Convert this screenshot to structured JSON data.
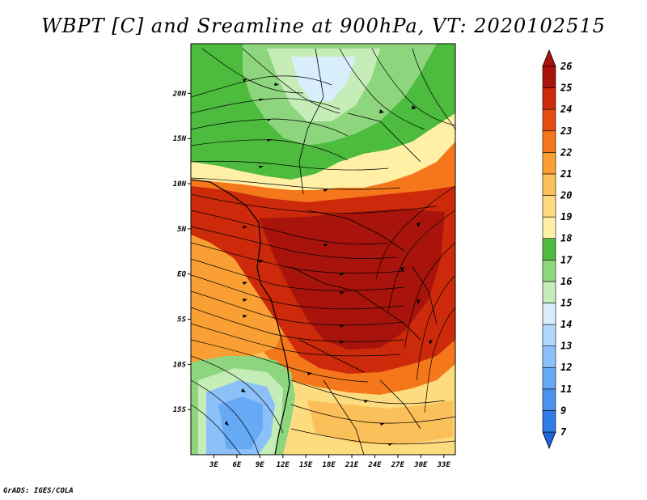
{
  "title": "WBPT [C] and Sreamline at 900hPa, VT: 2020102515",
  "footer": "GrADS: IGES/COLA",
  "map": {
    "lat_labels": [
      "20N",
      "15N",
      "10N",
      "5N",
      "EQ",
      "5S",
      "10S",
      "15S"
    ],
    "lat_values": [
      20,
      15,
      10,
      5,
      0,
      -5,
      -10,
      -15
    ],
    "lon_labels": [
      "3E",
      "6E",
      "9E",
      "12E",
      "15E",
      "18E",
      "21E",
      "24E",
      "27E",
      "30E",
      "33E"
    ],
    "lon_values": [
      3,
      6,
      9,
      12,
      15,
      18,
      21,
      24,
      27,
      30,
      33
    ],
    "lon_range": [
      0,
      34.5
    ],
    "lat_range": [
      -20,
      25.5
    ]
  },
  "colorbar": {
    "labels": [
      "7",
      "9",
      "11",
      "12",
      "13",
      "14",
      "15",
      "16",
      "17",
      "18",
      "19",
      "20",
      "21",
      "22",
      "23",
      "24",
      "25",
      "26"
    ],
    "colors": [
      "#1e64dc",
      "#2f7ce6",
      "#4b93ee",
      "#66a9f4",
      "#8bc1f8",
      "#b2d8fb",
      "#d8eefc",
      "#c6ecb8",
      "#8ed67e",
      "#4cbb3e",
      "#fff0a6",
      "#fddb7f",
      "#fcc05a",
      "#f99f33",
      "#f4781b",
      "#e44f10",
      "#cc2a0a",
      "#a8140c"
    ]
  }
}
